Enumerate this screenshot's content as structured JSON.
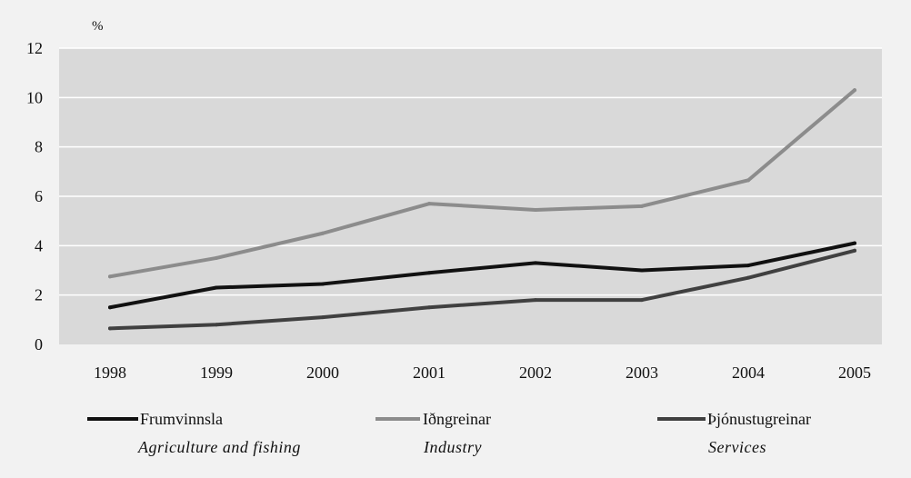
{
  "chart_data": {
    "type": "line",
    "unit_label": "%",
    "x": [
      "1998",
      "1999",
      "2000",
      "2001",
      "2002",
      "2003",
      "2004",
      "2005"
    ],
    "ylim": [
      0,
      12
    ],
    "yticks": [
      "0",
      "2",
      "4",
      "6",
      "8",
      "10",
      "12"
    ],
    "grid": true,
    "legend_position": "bottom",
    "series": [
      {
        "name": "Frumvinnsla",
        "name_en": "Agriculture and fishing",
        "color": "#111111",
        "values": [
          1.5,
          2.3,
          2.45,
          2.9,
          3.3,
          3.0,
          3.2,
          4.1
        ]
      },
      {
        "name": "Iðngreinar",
        "name_en": "Industry",
        "color": "#8c8c8c",
        "values": [
          2.75,
          3.5,
          4.5,
          5.7,
          5.45,
          5.6,
          6.65,
          10.3
        ]
      },
      {
        "name": "Þjónustugreinar",
        "name_en": "Services",
        "color": "#404040",
        "values": [
          0.65,
          0.8,
          1.1,
          1.5,
          1.8,
          1.8,
          2.7,
          3.8
        ]
      }
    ]
  }
}
